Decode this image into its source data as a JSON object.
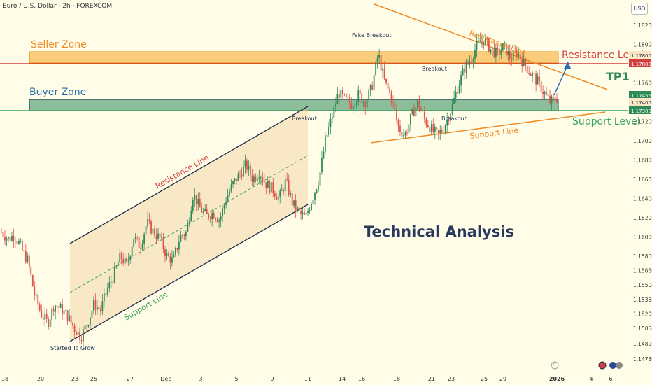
{
  "header": {
    "title": "Euro / U.S. Dollar · 2h · FOREXCOM",
    "currency_button": "USD"
  },
  "colors": {
    "background": "#fffde8",
    "seller_zone": "#f5a623",
    "buyer_zone": "#2e8b57",
    "resistance": "#d33f3f",
    "support": "#3aa35a",
    "channel": "#1a2b4a",
    "wedge": "#f08a24",
    "candle_up": "#2e8b57",
    "candle_down": "#e0524a",
    "title_text": "#2a3a5e"
  },
  "annotations": {
    "seller_zone": "Seller Zone",
    "buyer_zone": "Buyer Zone",
    "resistance_level": "Resistance Level",
    "support_level": "Support Level",
    "tp1": "TP1",
    "channel_resistance": "Resistance Line",
    "channel_support": "Support Line",
    "wedge_resistance": "Resistance Line",
    "wedge_support": "Support Line",
    "breakout_1": "Breakout",
    "breakout_2": "Breakout",
    "breakout_3": "Breakout",
    "fake_breakout": "Fake Breakout",
    "started_to_grow": "Started To Grow",
    "technical_analysis": "Technical Analysis"
  },
  "chart_data": {
    "type": "candlestick",
    "title": "Euro / U.S. Dollar · 2h · FOREXCOM",
    "price_axis": {
      "ticks": [
        "1.18200",
        "1.18000",
        "1.17600",
        "1.17400",
        "1.17200",
        "1.17000",
        "1.16800",
        "1.16600",
        "1.16400",
        "1.16200",
        "1.16000",
        "1.15800",
        "1.15650",
        "1.15500",
        "1.15350",
        "1.15200",
        "1.15050",
        "1.14890",
        "1.14730"
      ],
      "tick_values": [
        1.182,
        1.18,
        1.176,
        1.174,
        1.172,
        1.17,
        1.168,
        1.166,
        1.164,
        1.162,
        1.16,
        1.158,
        1.1565,
        1.155,
        1.1535,
        1.152,
        1.1505,
        1.1489,
        1.1473
      ],
      "range": [
        1.1468,
        1.1848
      ]
    },
    "price_badges": [
      {
        "label": "1.17800",
        "value": 1.178,
        "color": "#fbe6c6"
      },
      {
        "label": "1.17800",
        "value": 1.178,
        "color": "#d33f3f"
      },
      {
        "label": "1.17456",
        "value": 1.17456,
        "color": "#2e8b57"
      },
      {
        "label": "1.17400",
        "value": 1.174,
        "color": "#fbe6c6"
      },
      {
        "label": "1.17300",
        "value": 1.173,
        "color": "#2e8b57"
      }
    ],
    "time_axis": [
      "18",
      "20",
      "23",
      "25",
      "27",
      "Dec",
      "3",
      "5",
      "9",
      "11",
      "14",
      "16",
      "18",
      "21",
      "23",
      "25",
      "29",
      "2026",
      "4",
      "6"
    ],
    "levels": {
      "resistance": 1.178,
      "support": 1.173,
      "seller_zone": [
        1.1778,
        1.1792
      ],
      "buyer_zone": [
        1.1731,
        1.1746
      ]
    },
    "close_path": [
      1.1605,
      1.1598,
      1.1602,
      1.1588,
      1.1575,
      1.154,
      1.152,
      1.151,
      1.153,
      1.1525,
      1.1518,
      1.1505,
      1.1496,
      1.151,
      1.153,
      1.1524,
      1.1545,
      1.156,
      1.158,
      1.157,
      1.16,
      1.159,
      1.1615,
      1.1605,
      1.1598,
      1.158,
      1.1575,
      1.16,
      1.1605,
      1.1645,
      1.163,
      1.1622,
      1.1625,
      1.1618,
      1.164,
      1.1655,
      1.1665,
      1.1675,
      1.166,
      1.1668,
      1.1655,
      1.165,
      1.164,
      1.1658,
      1.1635,
      1.1625,
      1.162,
      1.164,
      1.166,
      1.17,
      1.1725,
      1.175,
      1.1742,
      1.1738,
      1.1748,
      1.174,
      1.1755,
      1.179,
      1.176,
      1.1745,
      1.1715,
      1.1705,
      1.1725,
      1.174,
      1.1722,
      1.1712,
      1.1705,
      1.1715,
      1.1732,
      1.1755,
      1.1775,
      1.1785,
      1.18,
      1.1805,
      1.1795,
      1.179,
      1.1798,
      1.1785,
      1.1792,
      1.178,
      1.177,
      1.1762,
      1.175,
      1.174,
      1.1745
    ]
  }
}
